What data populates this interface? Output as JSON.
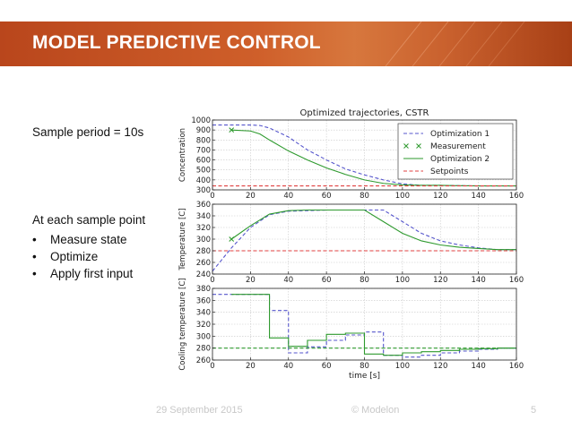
{
  "slide": {
    "title": "MODEL PREDICTIVE CONTROL",
    "sample_period": "Sample period = 10s",
    "sample_point_heading": "At each sample point",
    "bullets": [
      "Measure state",
      "Optimize",
      "Apply first input"
    ],
    "bullet_char": "•",
    "footer_date": "29 September 2015",
    "footer_company": "© Modelon",
    "page_number": "5"
  },
  "colors": {
    "banner": "#c9582a",
    "optimization1": "#5555cc",
    "measurement": "#2e9a2e",
    "optimization2": "#2e9a2e",
    "setpoint": "#e04040"
  },
  "chart_data": [
    {
      "type": "line",
      "title": "Optimized trajectories, CSTR",
      "ylabel": "Concentration",
      "xlim": [
        0,
        160
      ],
      "ylim": [
        300,
        1000
      ],
      "xticks": [
        0,
        20,
        40,
        60,
        80,
        100,
        120,
        140,
        160
      ],
      "yticks": [
        300,
        400,
        500,
        600,
        700,
        800,
        900,
        1000
      ],
      "grid": true,
      "legend": {
        "placement": "top-right",
        "entries": [
          "Optimization 1",
          "Measurement",
          "Optimization 2",
          "Setpoints"
        ]
      },
      "series": [
        {
          "name": "Optimization 1",
          "style": "dashed",
          "color": "#5555cc",
          "x": [
            0,
            10,
            20,
            25,
            30,
            40,
            50,
            60,
            70,
            80,
            90,
            95,
            100,
            110,
            120,
            130,
            140,
            150,
            160
          ],
          "y": [
            950,
            950,
            950,
            945,
            920,
            830,
            700,
            600,
            510,
            450,
            400,
            380,
            360,
            345,
            345,
            342,
            340,
            340,
            340
          ]
        },
        {
          "name": "Measurement",
          "style": "marker-x",
          "color": "#2e9a2e",
          "x": [
            10
          ],
          "y": [
            900
          ]
        },
        {
          "name": "Optimization 2",
          "style": "solid",
          "color": "#2e9a2e",
          "x": [
            10,
            20,
            25,
            30,
            40,
            50,
            60,
            70,
            80,
            90,
            100,
            110,
            120,
            130,
            140,
            150,
            160
          ],
          "y": [
            900,
            890,
            860,
            800,
            690,
            600,
            520,
            455,
            400,
            365,
            350,
            345,
            345,
            342,
            340,
            340,
            340
          ]
        },
        {
          "name": "Setpoints",
          "style": "dashed",
          "color": "#e04040",
          "x": [
            0,
            160
          ],
          "y": [
            340,
            340
          ]
        }
      ]
    },
    {
      "type": "line",
      "ylabel": "Temperature [C]",
      "xlim": [
        0,
        160
      ],
      "ylim": [
        240,
        360
      ],
      "xticks": [
        0,
        20,
        40,
        60,
        80,
        100,
        120,
        140,
        160
      ],
      "yticks": [
        240,
        260,
        280,
        300,
        320,
        340,
        360
      ],
      "grid": true,
      "series": [
        {
          "name": "Optimization 1",
          "style": "dashed",
          "color": "#5555cc",
          "x": [
            0,
            10,
            20,
            30,
            40,
            50,
            60,
            70,
            80,
            90,
            100,
            110,
            120,
            130,
            140,
            150,
            160
          ],
          "y": [
            245,
            285,
            320,
            342,
            348,
            349,
            350,
            350,
            350,
            350,
            330,
            310,
            297,
            290,
            285,
            282,
            282
          ]
        },
        {
          "name": "Measurement",
          "style": "marker-x",
          "color": "#2e9a2e",
          "x": [
            10
          ],
          "y": [
            300
          ]
        },
        {
          "name": "Optimization 2",
          "style": "solid",
          "color": "#2e9a2e",
          "x": [
            10,
            20,
            25,
            30,
            40,
            50,
            60,
            70,
            80,
            90,
            100,
            110,
            120,
            130,
            140,
            150,
            160
          ],
          "y": [
            300,
            323,
            333,
            343,
            349,
            350,
            350,
            350,
            350,
            330,
            310,
            297,
            290,
            286,
            284,
            282,
            282
          ]
        },
        {
          "name": "Setpoints",
          "style": "dashed",
          "color": "#e04040",
          "x": [
            0,
            160
          ],
          "y": [
            280,
            280
          ]
        }
      ]
    },
    {
      "type": "line",
      "ylabel": "Cooling temperature [C]",
      "xlabel": "time [s]",
      "xlim": [
        0,
        160
      ],
      "ylim": [
        260,
        380
      ],
      "xticks": [
        0,
        20,
        40,
        60,
        80,
        100,
        120,
        140,
        160
      ],
      "yticks": [
        260,
        280,
        300,
        320,
        340,
        360,
        380
      ],
      "grid": true,
      "series": [
        {
          "name": "Optimization 1",
          "style": "dashed-step",
          "color": "#5555cc",
          "x": [
            0,
            10,
            20,
            30,
            40,
            50,
            60,
            70,
            80,
            90,
            100,
            110,
            120,
            130,
            140,
            150,
            160
          ],
          "y": [
            370,
            370,
            370,
            343,
            272,
            282,
            293,
            302,
            307,
            268,
            265,
            268,
            272,
            275,
            278,
            280,
            280
          ]
        },
        {
          "name": "Optimization 2",
          "style": "solid-step",
          "color": "#2e9a2e",
          "x": [
            10,
            20,
            30,
            40,
            50,
            60,
            70,
            80,
            90,
            100,
            110,
            120,
            130,
            140,
            150,
            160
          ],
          "y": [
            370,
            370,
            297,
            283,
            293,
            303,
            305,
            270,
            268,
            272,
            274,
            276,
            278,
            279,
            280,
            280
          ]
        },
        {
          "name": "Setpoints",
          "style": "dashed",
          "color": "#2e9a2e",
          "x": [
            0,
            160
          ],
          "y": [
            280,
            280
          ]
        }
      ]
    }
  ]
}
